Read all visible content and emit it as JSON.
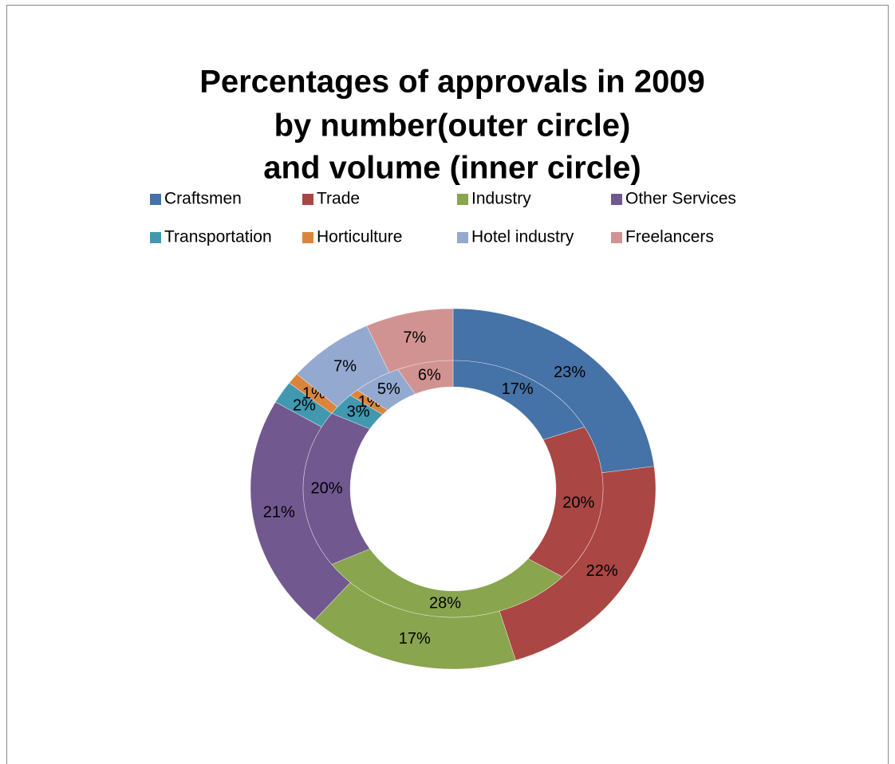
{
  "chart_data": {
    "type": "donut",
    "title": [
      "Percentages of approvals in 2009",
      "by number(outer circle)",
      "and volume (inner circle)"
    ],
    "categories": [
      "Craftsmen",
      "Trade",
      "Industry",
      "Other Services",
      "Transportation",
      "Horticulture",
      "Hotel industry",
      "Freelancers"
    ],
    "colors": [
      "#4572a7",
      "#aa4643",
      "#89a54e",
      "#71588f",
      "#4198af",
      "#db843d",
      "#93a9cf",
      "#d19392"
    ],
    "series": [
      {
        "values": [
          23,
          22,
          17,
          21,
          2,
          1,
          7,
          7
        ],
        "value_labels": [
          "23%",
          "22%",
          "17%",
          "21%",
          "2%",
          "1%",
          "7%",
          "7%"
        ]
      },
      {
        "values": [
          17,
          20,
          28,
          20,
          3,
          1,
          5,
          6
        ],
        "value_labels": [
          "17%",
          "20%",
          "28%",
          "20%",
          "3%",
          "1%",
          "5%",
          "6%"
        ]
      }
    ],
    "legend": "top"
  }
}
